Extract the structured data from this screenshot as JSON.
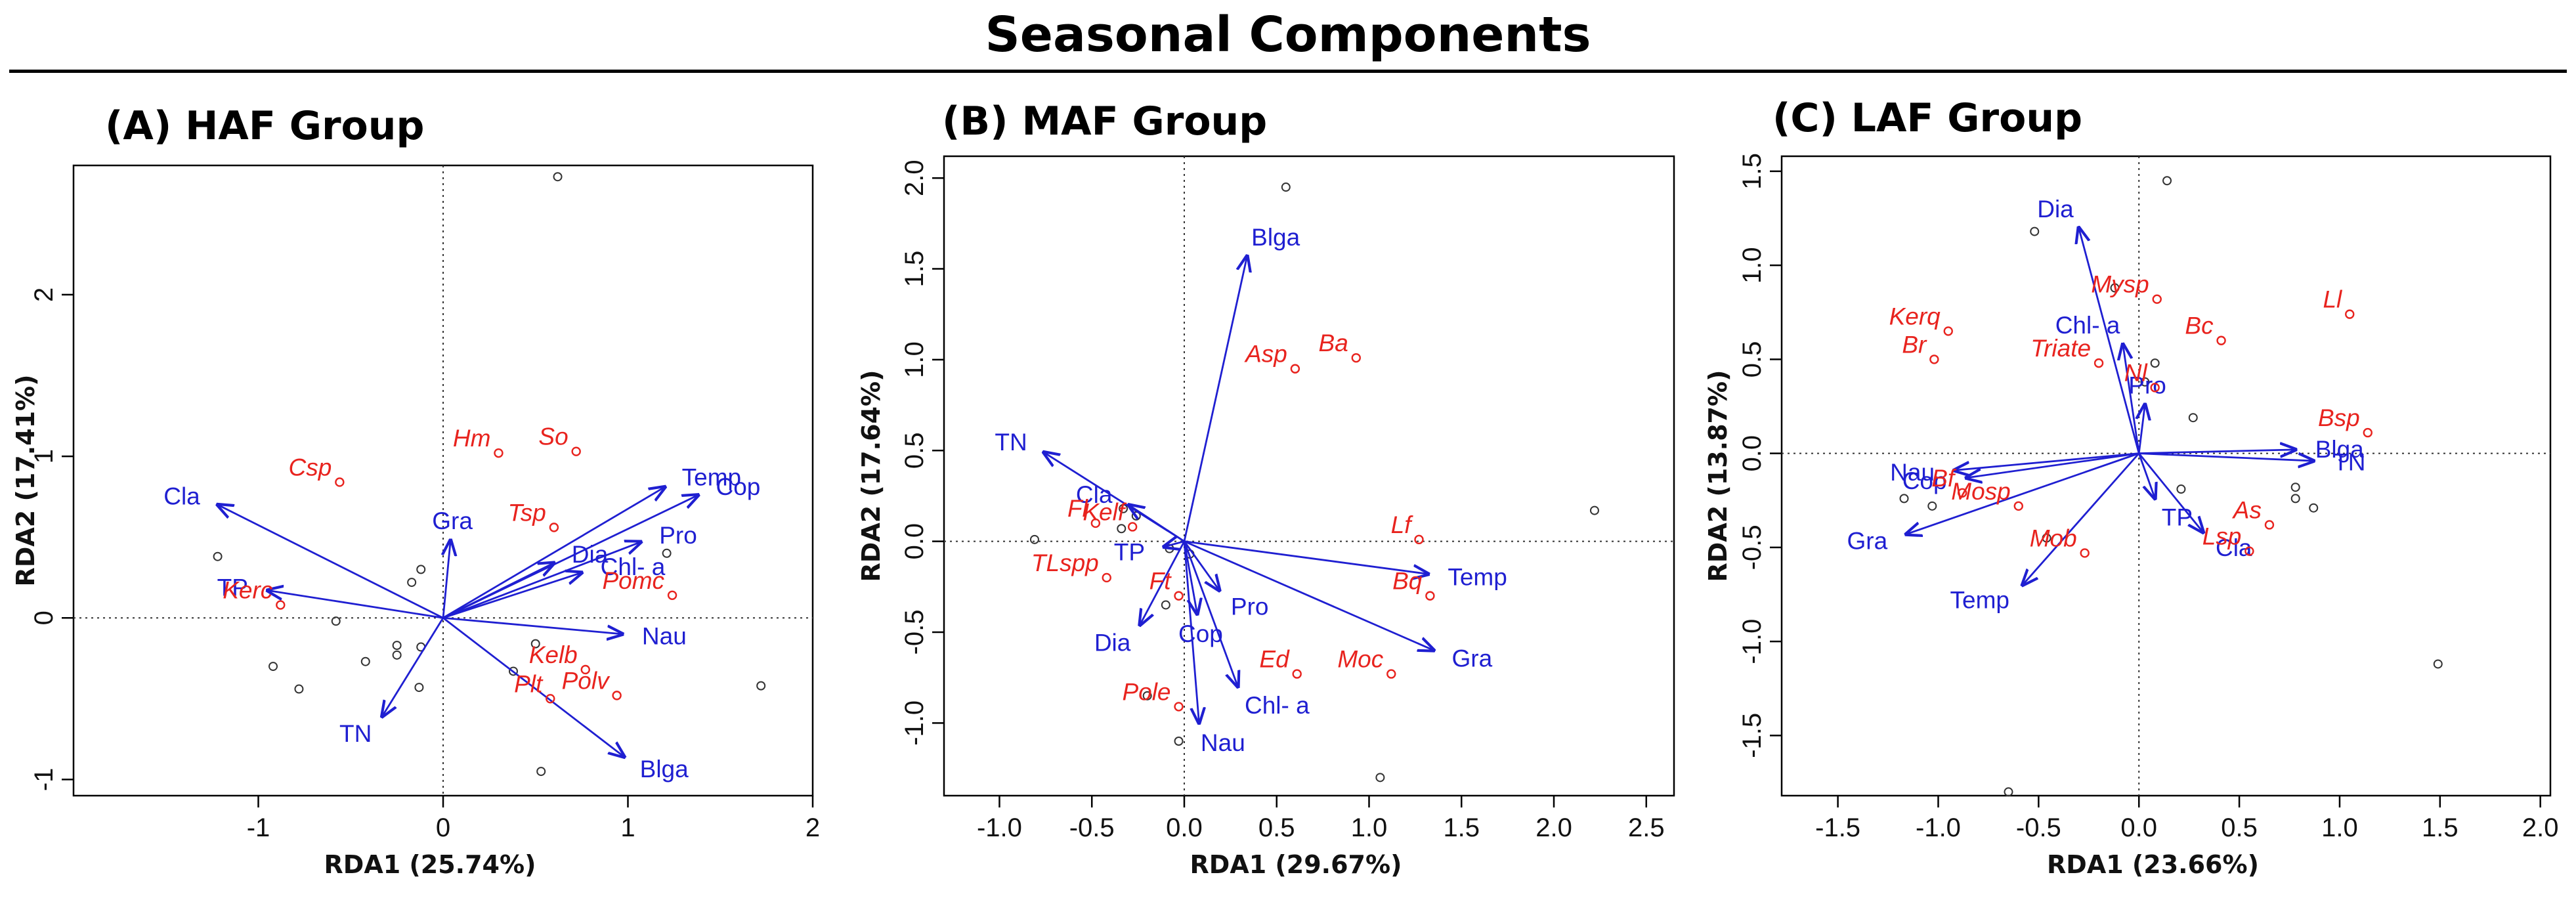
{
  "title": "Seasonal Components",
  "colors": {
    "arrow": "#1f1fd1",
    "species": "#e8231e",
    "site": "#333333"
  },
  "chart_data": [
    {
      "type": "scatter",
      "subtype": "rda-biplot",
      "title": "(A) HAF Group",
      "xlabel": "RDA1 (25.74%)",
      "ylabel": "RDA2 (17.41%)",
      "xlim": [
        -2.0,
        2.0
      ],
      "ylim": [
        -1.1,
        2.8
      ],
      "xticks": [
        -1,
        0,
        1,
        2
      ],
      "yticks": [
        -1,
        0,
        1,
        2
      ],
      "env_arrows": [
        {
          "label": "Cla",
          "x": -1.22,
          "y": 0.7
        },
        {
          "label": "TP",
          "x": -0.95,
          "y": 0.17
        },
        {
          "label": "TN",
          "x": -0.33,
          "y": -0.61
        },
        {
          "label": "Gra",
          "x": 0.04,
          "y": 0.48
        },
        {
          "label": "Dia",
          "x": 0.6,
          "y": 0.34
        },
        {
          "label": "Chl- a",
          "x": 0.75,
          "y": 0.28
        },
        {
          "label": "Pro",
          "x": 1.07,
          "y": 0.47
        },
        {
          "label": "Temp",
          "x": 1.2,
          "y": 0.81
        },
        {
          "label": "Cop",
          "x": 1.38,
          "y": 0.76
        },
        {
          "label": "Nau",
          "x": 0.97,
          "y": -0.1
        },
        {
          "label": "Blga",
          "x": 0.98,
          "y": -0.86
        }
      ],
      "species": [
        {
          "label": "Csp",
          "x": -0.56,
          "y": 0.84
        },
        {
          "label": "Hm",
          "x": 0.3,
          "y": 1.02
        },
        {
          "label": "So",
          "x": 0.72,
          "y": 1.03
        },
        {
          "label": "Tsp",
          "x": 0.6,
          "y": 0.56
        },
        {
          "label": "Pomc",
          "x": 1.24,
          "y": 0.14
        },
        {
          "label": "Kerc",
          "x": -0.88,
          "y": 0.08
        },
        {
          "label": "Kelb",
          "x": 0.77,
          "y": -0.32
        },
        {
          "label": "Polv",
          "x": 0.94,
          "y": -0.48
        },
        {
          "label": "Plt",
          "x": 0.58,
          "y": -0.5
        }
      ],
      "sites": [
        [
          0.62,
          2.73
        ],
        [
          -1.22,
          0.38
        ],
        [
          -0.12,
          0.3
        ],
        [
          -0.17,
          0.22
        ],
        [
          1.21,
          0.4
        ],
        [
          -0.58,
          -0.02
        ],
        [
          -0.25,
          -0.17
        ],
        [
          -0.25,
          -0.23
        ],
        [
          -0.12,
          -0.18
        ],
        [
          0.5,
          -0.16
        ],
        [
          -0.42,
          -0.27
        ],
        [
          -0.92,
          -0.3
        ],
        [
          -0.78,
          -0.44
        ],
        [
          -0.13,
          -0.43
        ],
        [
          0.38,
          -0.33
        ],
        [
          0.53,
          -0.95
        ],
        [
          1.72,
          -0.42
        ]
      ]
    },
    {
      "type": "scatter",
      "subtype": "rda-biplot",
      "title": "(B) MAF Group",
      "xlabel": "RDA1 (29.67%)",
      "ylabel": "RDA2 (17.64%)",
      "xlim": [
        -1.3,
        2.65
      ],
      "ylim": [
        -1.4,
        2.12
      ],
      "xticks": [
        -1.0,
        -0.5,
        0.0,
        0.5,
        1.0,
        1.5,
        2.0,
        2.5
      ],
      "yticks": [
        -1.0,
        -0.5,
        0.0,
        0.5,
        1.0,
        1.5,
        2.0
      ],
      "env_arrows": [
        {
          "label": "Blga",
          "x": 0.34,
          "y": 1.57
        },
        {
          "label": "TN",
          "x": -0.76,
          "y": 0.49
        },
        {
          "label": "Cla",
          "x": -0.3,
          "y": 0.2
        },
        {
          "label": "TP",
          "x": -0.11,
          "y": -0.03
        },
        {
          "label": "Temp",
          "x": 1.32,
          "y": -0.18
        },
        {
          "label": "Gra",
          "x": 1.35,
          "y": -0.6
        },
        {
          "label": "Pro",
          "x": 0.19,
          "y": -0.27
        },
        {
          "label": "Cop",
          "x": 0.07,
          "y": -0.4
        },
        {
          "label": "Dia",
          "x": -0.24,
          "y": -0.46
        },
        {
          "label": "Chl- a",
          "x": 0.29,
          "y": -0.8
        },
        {
          "label": "Nau",
          "x": 0.08,
          "y": -1.0
        }
      ],
      "species": [
        {
          "label": "Asp",
          "x": 0.6,
          "y": 0.95
        },
        {
          "label": "Ba",
          "x": 0.93,
          "y": 1.01
        },
        {
          "label": "Lf",
          "x": 1.27,
          "y": 0.01
        },
        {
          "label": "Fl",
          "x": -0.48,
          "y": 0.1
        },
        {
          "label": "Kelf",
          "x": -0.28,
          "y": 0.08
        },
        {
          "label": "TLspp",
          "x": -0.42,
          "y": -0.2
        },
        {
          "label": "Ft",
          "x": -0.03,
          "y": -0.3
        },
        {
          "label": "Bq",
          "x": 1.33,
          "y": -0.3
        },
        {
          "label": "Ed",
          "x": 0.61,
          "y": -0.73
        },
        {
          "label": "Moc",
          "x": 1.12,
          "y": -0.73
        },
        {
          "label": "Pole",
          "x": -0.03,
          "y": -0.91
        }
      ],
      "sites": [
        [
          0.55,
          1.95
        ],
        [
          2.22,
          0.17
        ],
        [
          -0.81,
          0.01
        ],
        [
          -0.33,
          0.18
        ],
        [
          -0.26,
          0.14
        ],
        [
          -0.34,
          0.07
        ],
        [
          -0.08,
          -0.04
        ],
        [
          0.03,
          -0.07
        ],
        [
          -0.1,
          -0.35
        ],
        [
          -0.2,
          -0.85
        ],
        [
          -0.03,
          -1.1
        ],
        [
          1.06,
          -1.3
        ]
      ]
    },
    {
      "type": "scatter",
      "subtype": "rda-biplot",
      "title": "(C) LAF Group",
      "xlabel": "RDA1 (23.66%)",
      "ylabel": "RDA2 (13.87%)",
      "xlim": [
        -1.78,
        2.05
      ],
      "ylim": [
        -1.82,
        1.58
      ],
      "xticks": [
        -1.5,
        -1.0,
        -0.5,
        0.0,
        0.5,
        1.0,
        1.5,
        2.0
      ],
      "yticks": [
        -1.5,
        -1.0,
        -0.5,
        0.0,
        0.5,
        1.0,
        1.5
      ],
      "env_arrows": [
        {
          "label": "Dia",
          "x": -0.3,
          "y": 1.2
        },
        {
          "label": "Chl- a",
          "x": -0.08,
          "y": 0.58
        },
        {
          "label": "Pro",
          "x": 0.03,
          "y": 0.26
        },
        {
          "label": "Blga",
          "x": 0.78,
          "y": 0.02
        },
        {
          "label": "TN",
          "x": 0.87,
          "y": -0.04
        },
        {
          "label": "Nau",
          "x": -0.92,
          "y": -0.09
        },
        {
          "label": "Cop",
          "x": -0.86,
          "y": -0.13
        },
        {
          "label": "Gra",
          "x": -1.16,
          "y": -0.43
        },
        {
          "label": "Temp",
          "x": -0.58,
          "y": -0.7
        },
        {
          "label": "TP",
          "x": 0.08,
          "y": -0.24
        },
        {
          "label": "Cla",
          "x": 0.32,
          "y": -0.42
        }
      ],
      "species": [
        {
          "label": "Mysp",
          "x": 0.09,
          "y": 0.82
        },
        {
          "label": "Ll",
          "x": 1.05,
          "y": 0.74
        },
        {
          "label": "Kerq",
          "x": -0.95,
          "y": 0.65
        },
        {
          "label": "Bc",
          "x": 0.41,
          "y": 0.6
        },
        {
          "label": "Br",
          "x": -1.02,
          "y": 0.5
        },
        {
          "label": "Triate",
          "x": -0.2,
          "y": 0.48
        },
        {
          "label": "Nl",
          "x": 0.08,
          "y": 0.35
        },
        {
          "label": "Bsp",
          "x": 1.14,
          "y": 0.11
        },
        {
          "label": "Bf",
          "x": -0.88,
          "y": -0.21
        },
        {
          "label": "Mosp",
          "x": -0.6,
          "y": -0.28
        },
        {
          "label": "As",
          "x": 0.65,
          "y": -0.38
        },
        {
          "label": "Mob",
          "x": -0.27,
          "y": -0.53
        },
        {
          "label": "Lsp",
          "x": 0.55,
          "y": -0.52
        }
      ],
      "sites": [
        [
          0.14,
          1.45
        ],
        [
          -0.52,
          1.18
        ],
        [
          -0.12,
          0.88
        ],
        [
          0.08,
          0.48
        ],
        [
          0.03,
          0.38
        ],
        [
          0.27,
          0.19
        ],
        [
          -1.17,
          -0.24
        ],
        [
          -1.03,
          -0.28
        ],
        [
          0.21,
          -0.19
        ],
        [
          0.78,
          -0.18
        ],
        [
          0.78,
          -0.24
        ],
        [
          0.87,
          -0.29
        ],
        [
          -0.46,
          -0.45
        ],
        [
          1.49,
          -1.12
        ],
        [
          -0.65,
          -1.8
        ]
      ]
    }
  ]
}
